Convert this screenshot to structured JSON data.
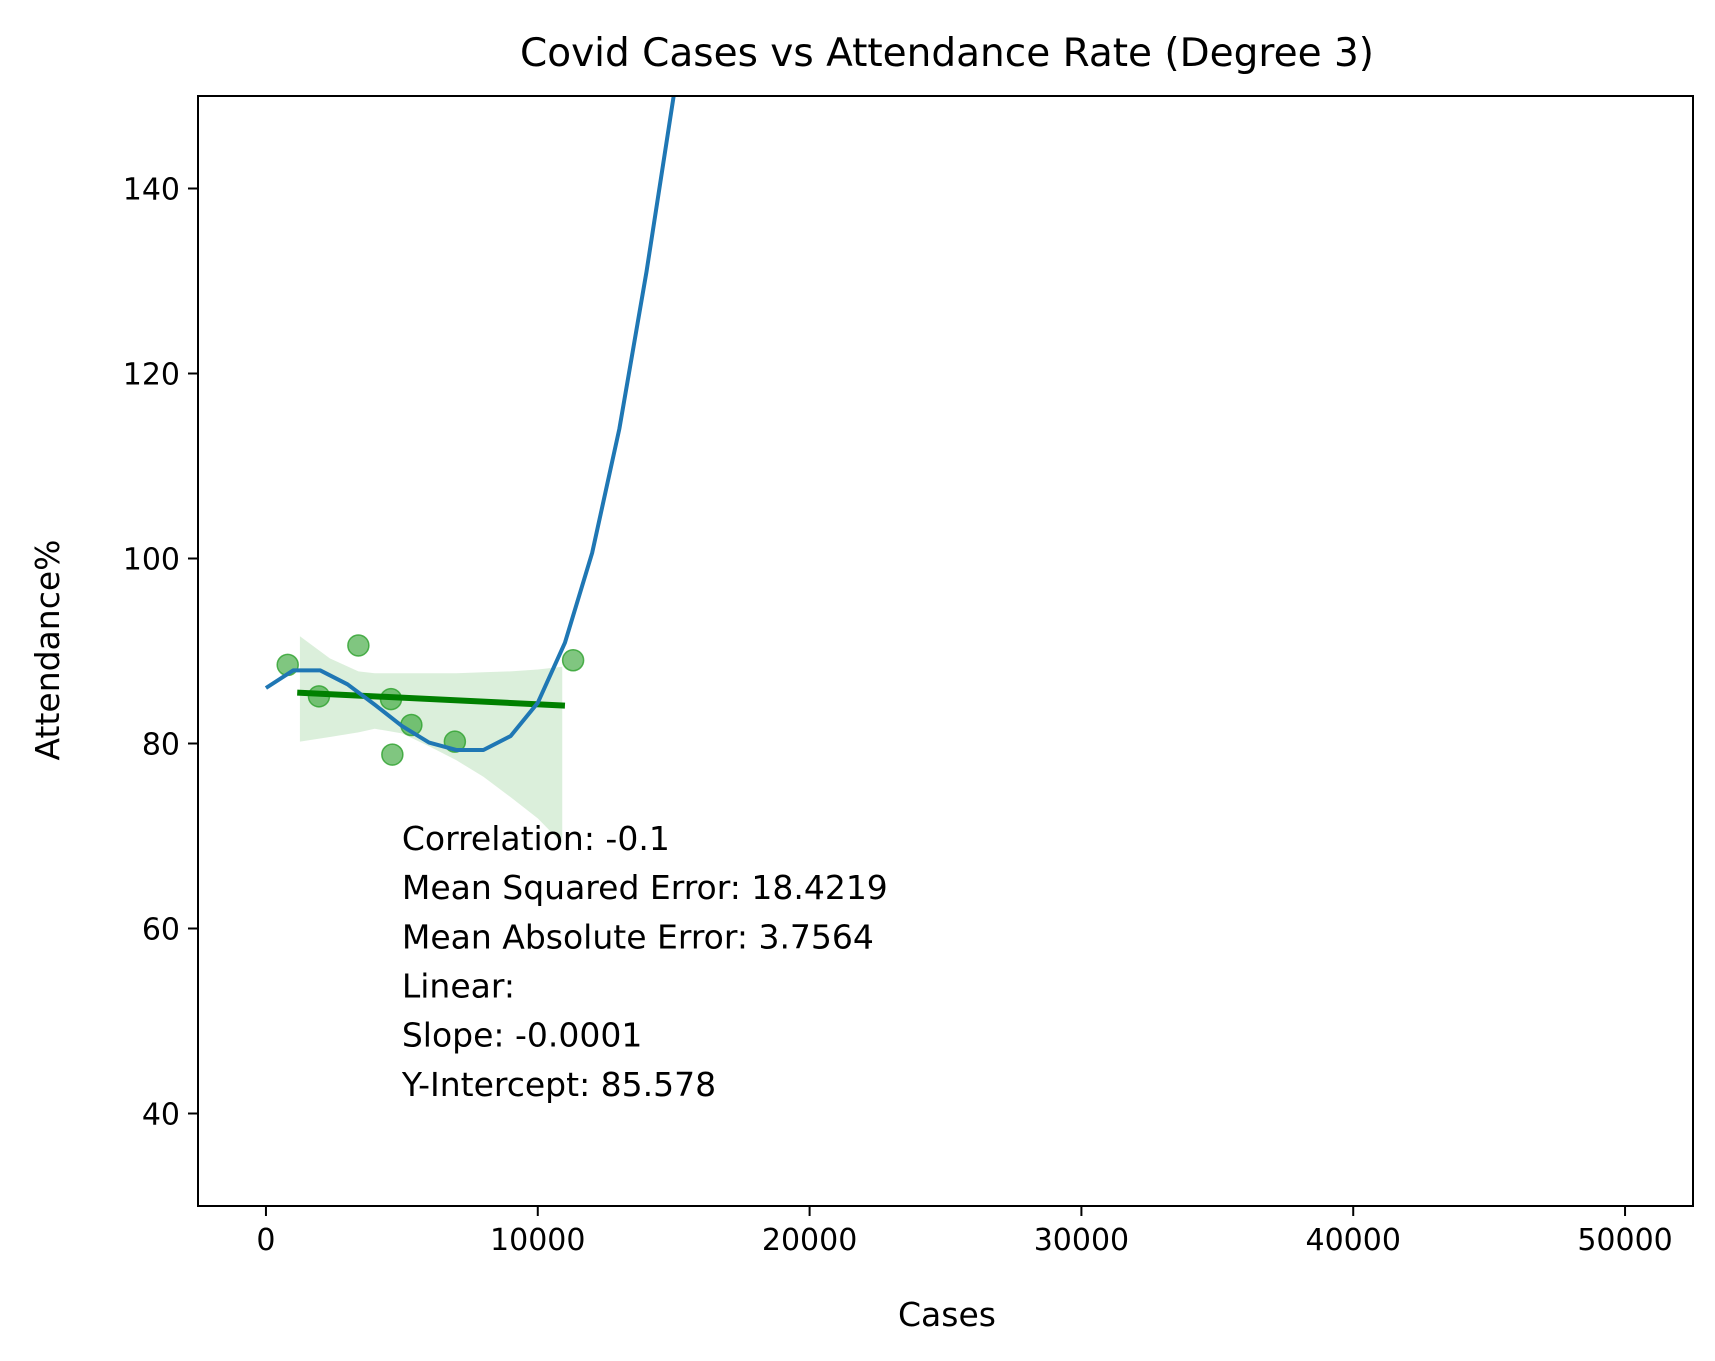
{
  "chart_data": {
    "type": "scatter",
    "title": "Covid Cases vs Attendance Rate (Degree 3)",
    "xlabel": "Cases",
    "ylabel": "Attendance%",
    "xlim": [
      -2500,
      52500
    ],
    "ylim": [
      30,
      150
    ],
    "xticks": [
      0,
      10000,
      20000,
      30000,
      40000,
      50000
    ],
    "xtick_labels": [
      "0",
      "10000",
      "20000",
      "30000",
      "40000",
      "50000"
    ],
    "yticks": [
      40,
      60,
      80,
      100,
      120,
      140
    ],
    "ytick_labels": [
      "40",
      "60",
      "80",
      "100",
      "120",
      "140"
    ],
    "grid": false,
    "colors": {
      "points": "#2ca02c",
      "linear_fit": "#008000",
      "confidence_band": "#2ca02c",
      "poly_fit": "#1f77b4"
    },
    "series": [
      {
        "kind": "scatter",
        "x": [
          800,
          1950,
          3400,
          4600,
          4650,
          5350,
          6950,
          11300
        ],
        "y": [
          88.5,
          85.1,
          90.6,
          84.8,
          78.8,
          82.0,
          80.2,
          89.0
        ]
      },
      {
        "kind": "linear_fit",
        "x": [
          1150,
          11000
        ],
        "y": [
          85.5,
          84.1
        ]
      },
      {
        "kind": "confidence_band",
        "x": [
          1250,
          2350,
          3400,
          4000,
          5000,
          6000,
          7000,
          8000,
          9000,
          10000,
          10900
        ],
        "upper": [
          91.6,
          89.2,
          87.8,
          87.6,
          87.6,
          87.6,
          87.6,
          87.7,
          87.8,
          88.0,
          88.3
        ],
        "lower": [
          80.2,
          80.7,
          81.2,
          81.6,
          81.1,
          79.7,
          78.2,
          76.4,
          74.2,
          71.9,
          69.2
        ]
      },
      {
        "kind": "poly_fit",
        "degree": 3,
        "x": [
          0,
          1000,
          2000,
          3000,
          4000,
          5000,
          6000,
          7000,
          8000,
          9000,
          10000,
          11000,
          12000,
          13000,
          14000,
          15000
        ],
        "y": [
          86.0,
          87.9,
          87.9,
          86.4,
          84.2,
          81.9,
          80.1,
          79.3,
          79.3,
          80.8,
          84.4,
          90.9,
          100.6,
          114.0,
          131.0,
          150.0
        ]
      }
    ],
    "stats_lines": [
      "Correlation: -0.1",
      "Mean Squared Error: 18.4219",
      "Mean Absolute Error: 3.7564",
      "Linear:",
      "Slope: -0.0001",
      "Y-Intercept: 85.578"
    ],
    "stats_anchor": {
      "x": 5000,
      "y": 68.5
    }
  }
}
